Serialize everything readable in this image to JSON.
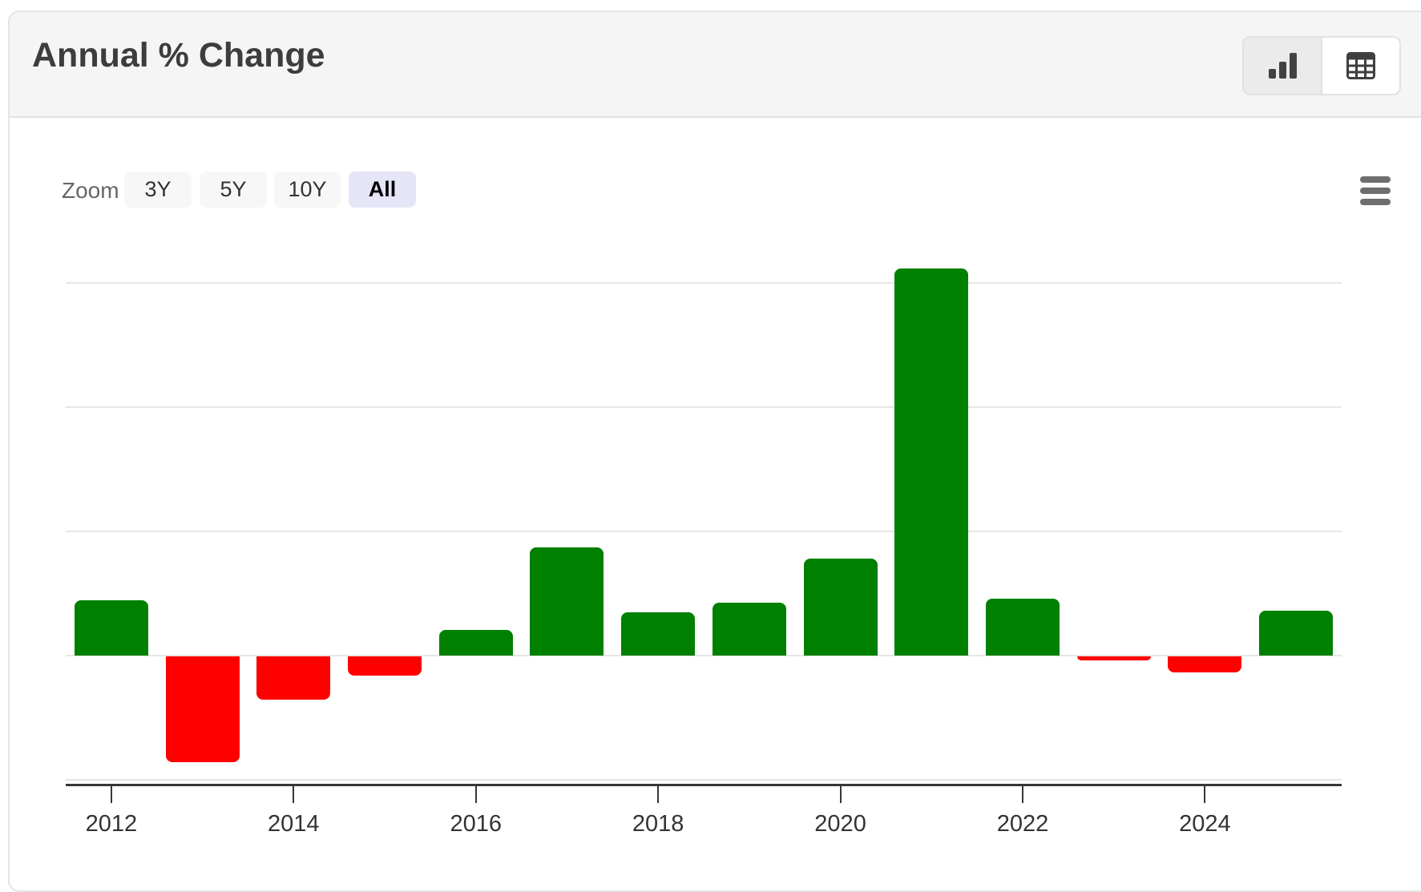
{
  "header": {
    "title": "Annual % Change",
    "view_toggle": {
      "options": [
        {
          "id": "chart",
          "icon": "bar-chart-icon",
          "active": true
        },
        {
          "id": "table",
          "icon": "table-icon",
          "active": false
        }
      ]
    }
  },
  "toolbar": {
    "zoom_label": "Zoom",
    "buttons": [
      {
        "label": "3Y",
        "selected": false
      },
      {
        "label": "5Y",
        "selected": false
      },
      {
        "label": "10Y",
        "selected": false
      },
      {
        "label": "All",
        "selected": true
      }
    ],
    "menu_icon": "hamburger-menu-icon"
  },
  "chart_data": {
    "type": "bar",
    "title": "Annual % Change",
    "categories": [
      "2012",
      "2013",
      "2014",
      "2015",
      "2016",
      "2017",
      "2018",
      "2019",
      "2020",
      "2021",
      "2022",
      "2023",
      "2024",
      "2025"
    ],
    "values": [
      8.9,
      -17.0,
      -6.9,
      -3.1,
      4.1,
      17.4,
      7.0,
      8.6,
      15.6,
      62.3,
      9.2,
      -0.6,
      -2.6,
      7.2
    ],
    "xlabel": "",
    "ylabel": "",
    "ylim": [
      -21,
      68
    ],
    "gridline_values": [
      60,
      40,
      20,
      0,
      -20
    ],
    "x_tick_labels": [
      "2012",
      "2014",
      "2016",
      "2018",
      "2020",
      "2022",
      "2024"
    ],
    "grid": true,
    "legend_position": "none",
    "colors": {
      "positive": "#008000",
      "negative": "#ff0000"
    }
  }
}
